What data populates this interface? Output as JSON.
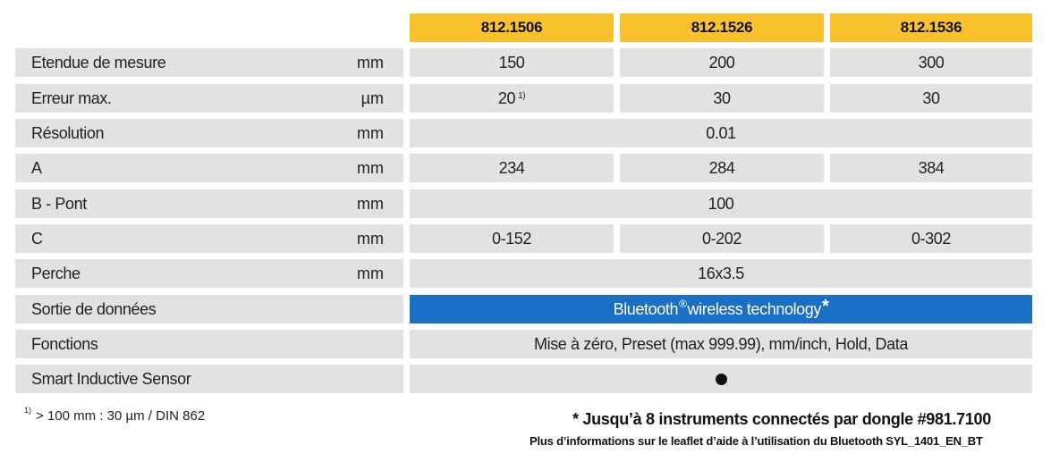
{
  "header": {
    "models": [
      "812.1506",
      "812.1526",
      "812.1536"
    ]
  },
  "rows": [
    {
      "label": "Etendue de mesure",
      "unit": "mm",
      "values": [
        "150",
        "200",
        "300"
      ]
    },
    {
      "label": "Erreur max.",
      "unit": "µm",
      "values": [
        "20",
        "30",
        "30"
      ],
      "first_note": "1)"
    },
    {
      "label": "Résolution",
      "unit": "mm",
      "span": "0.01"
    },
    {
      "label": "A",
      "unit": "mm",
      "values": [
        "234",
        "284",
        "384"
      ]
    },
    {
      "label": "B - Pont",
      "unit": "mm",
      "span": "100"
    },
    {
      "label": "C",
      "unit": "mm",
      "values": [
        "0-152",
        "0-202",
        "0-302"
      ]
    },
    {
      "label": "Perche",
      "unit": "mm",
      "span": "16x3.5"
    },
    {
      "label": "Sortie de données",
      "unit": "",
      "span_main": "Bluetooth",
      "span_reg": "®",
      "span_rest": "wireless technology",
      "span_mark": "*",
      "accent": "#1a6fc4"
    },
    {
      "label": "Fonctions",
      "unit": "",
      "span": "Mise à zéro, Preset (max 999.99), mm/inch, Hold, Data"
    },
    {
      "label": "Smart Inductive Sensor",
      "unit": "",
      "symbol": "filled-circle-icon"
    }
  ],
  "footnote": {
    "marker": "1)",
    "text": "> 100 mm : 30 µm / DIN 862"
  },
  "notes": {
    "line1": "* Jusqu’à 8 instruments connectés par dongle #981.7100",
    "line2": "Plus d’informations sur le leaflet d’aide à l’utilisation du Bluetooth SYL_1401_EN_BT"
  },
  "colors": {
    "header_bg": "#f9c12e",
    "cell_bg": "#e2e2e2",
    "bluetooth_bg": "#1a6fc4"
  }
}
